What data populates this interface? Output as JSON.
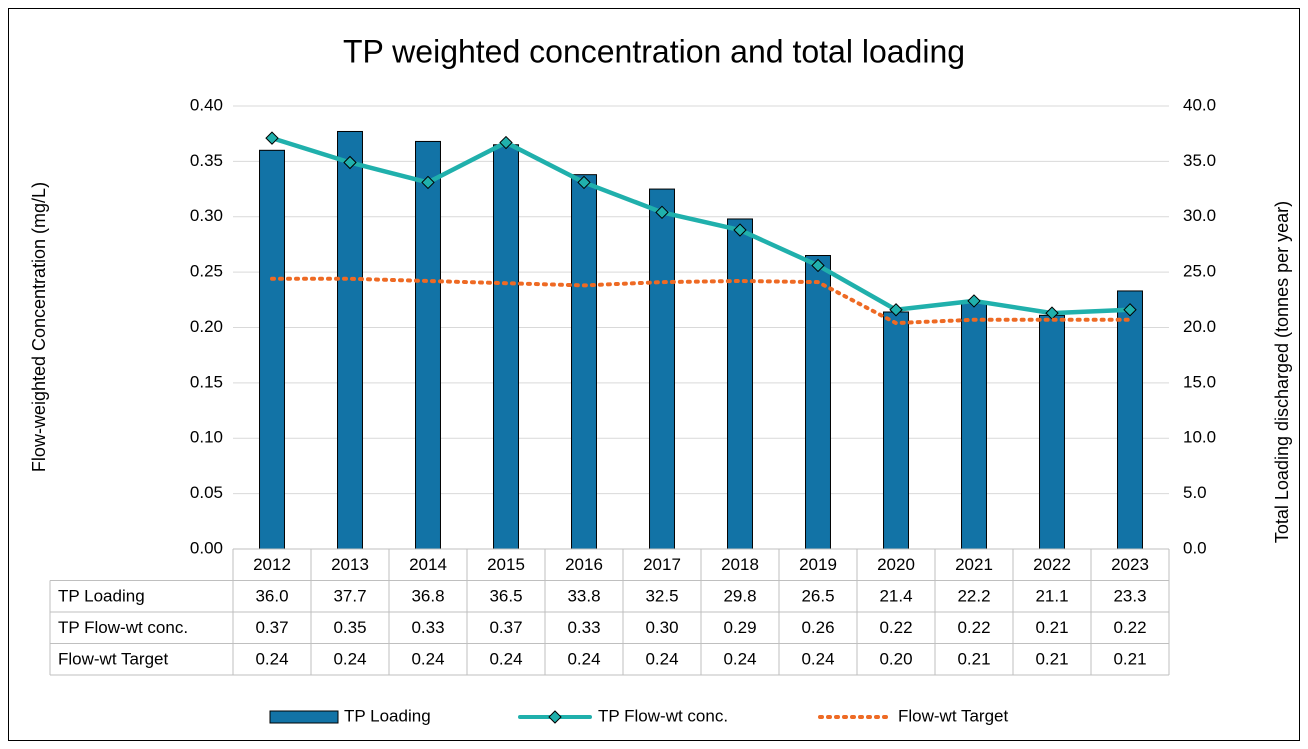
{
  "chart_data": {
    "type": "combo",
    "title": "TP weighted concentration and total loading",
    "y_label": "Flow-weighted Concentration (mg/L)",
    "y2_label": "Total Loading discharged (tonnes per year)",
    "categories": [
      "2012",
      "2013",
      "2014",
      "2015",
      "2016",
      "2017",
      "2018",
      "2019",
      "2020",
      "2021",
      "2022",
      "2023"
    ],
    "series": [
      {
        "name": "TP Loading",
        "type": "bar",
        "axis": "y2",
        "color": "#1273a6",
        "values": [
          36.0,
          37.7,
          36.8,
          36.5,
          33.8,
          32.5,
          29.8,
          26.5,
          21.4,
          22.2,
          21.1,
          23.3
        ],
        "value_labels": [
          "36.0",
          "37.7",
          "36.8",
          "36.5",
          "33.8",
          "32.5",
          "29.8",
          "26.5",
          "21.4",
          "22.2",
          "21.1",
          "23.3"
        ]
      },
      {
        "name": "TP Flow-wt conc.",
        "type": "line",
        "marker": "diamond",
        "line_style": "solid",
        "color": "#20b0ac",
        "values": [
          0.371,
          0.349,
          0.331,
          0.367,
          0.331,
          0.304,
          0.288,
          0.256,
          0.216,
          0.224,
          0.213,
          0.216
        ],
        "value_labels": [
          "0.37",
          "0.35",
          "0.33",
          "0.37",
          "0.33",
          "0.30",
          "0.29",
          "0.26",
          "0.22",
          "0.22",
          "0.21",
          "0.22"
        ]
      },
      {
        "name": "Flow-wt Target",
        "type": "line",
        "line_style": "dotted",
        "color": "#ee6a24",
        "values": [
          0.244,
          0.244,
          0.242,
          0.24,
          0.238,
          0.241,
          0.242,
          0.241,
          0.204,
          0.207,
          0.207,
          0.207
        ],
        "value_labels": [
          "0.24",
          "0.24",
          "0.24",
          "0.24",
          "0.24",
          "0.24",
          "0.24",
          "0.24",
          "0.20",
          "0.21",
          "0.21",
          "0.21"
        ]
      }
    ],
    "ylim": [
      0,
      0.4
    ],
    "yticks": [
      {
        "value": 0,
        "label": "0.00"
      },
      {
        "value": 0.05,
        "label": "0.05"
      },
      {
        "value": 0.1,
        "label": "0.10"
      },
      {
        "value": 0.15,
        "label": "0.15"
      },
      {
        "value": 0.2,
        "label": "0.20"
      },
      {
        "value": 0.25,
        "label": "0.25"
      },
      {
        "value": 0.3,
        "label": "0.30"
      },
      {
        "value": 0.35,
        "label": "0.35"
      },
      {
        "value": 0.4,
        "label": "0.40"
      }
    ],
    "y2lim": [
      0,
      40
    ],
    "y2ticks": [
      {
        "value": 0,
        "label": "0.0"
      },
      {
        "value": 5,
        "label": "5.0"
      },
      {
        "value": 10,
        "label": "10.0"
      },
      {
        "value": 15,
        "label": "15.0"
      },
      {
        "value": 20,
        "label": "20.0"
      },
      {
        "value": 25,
        "label": "25.0"
      },
      {
        "value": 30,
        "label": "30.0"
      },
      {
        "value": 35,
        "label": "35.0"
      },
      {
        "value": 40,
        "label": "40.0"
      }
    ],
    "grid": true,
    "legend": "bottom",
    "data_table": true
  }
}
